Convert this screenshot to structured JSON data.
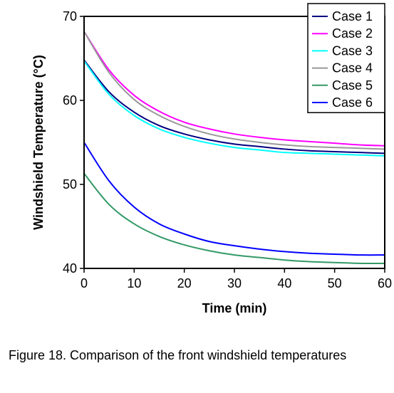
{
  "caption": "Figure 18. Comparison of the front windshield temperatures",
  "chart_data": {
    "type": "line",
    "xlabel": "Time (min)",
    "ylabel": "Windshield Temperature (°C)",
    "xlim": [
      0,
      60
    ],
    "ylim": [
      40,
      70
    ],
    "xticks": [
      0,
      10,
      20,
      30,
      40,
      50,
      60
    ],
    "yticks": [
      40,
      50,
      60,
      70
    ],
    "grid": false,
    "legend_position": "top-right",
    "x": [
      0,
      5,
      10,
      15,
      20,
      25,
      30,
      35,
      40,
      45,
      50,
      55,
      60
    ],
    "series": [
      {
        "name": "Case 1",
        "color": "#000080",
        "values": [
          64.8,
          61.0,
          58.6,
          57.0,
          56.0,
          55.3,
          54.8,
          54.5,
          54.2,
          54.0,
          53.9,
          53.8,
          53.7
        ]
      },
      {
        "name": "Case 2",
        "color": "#ff00ff",
        "values": [
          68.2,
          63.6,
          60.6,
          58.7,
          57.4,
          56.6,
          56.0,
          55.6,
          55.3,
          55.1,
          54.9,
          54.7,
          54.6
        ]
      },
      {
        "name": "Case 3",
        "color": "#00ffff",
        "values": [
          64.7,
          60.7,
          58.2,
          56.6,
          55.6,
          54.9,
          54.4,
          54.1,
          53.8,
          53.7,
          53.6,
          53.5,
          53.4
        ]
      },
      {
        "name": "Case 4",
        "color": "#999999",
        "values": [
          68.2,
          63.3,
          60.1,
          58.2,
          56.9,
          56.0,
          55.4,
          55.0,
          54.7,
          54.5,
          54.4,
          54.3,
          54.2
        ]
      },
      {
        "name": "Case 5",
        "color": "#339966",
        "values": [
          51.3,
          47.6,
          45.3,
          43.8,
          42.8,
          42.1,
          41.6,
          41.3,
          41.0,
          40.8,
          40.7,
          40.6,
          40.6
        ]
      },
      {
        "name": "Case 6",
        "color": "#0000ff",
        "values": [
          55.0,
          50.4,
          47.3,
          45.3,
          44.1,
          43.2,
          42.7,
          42.3,
          42.0,
          41.8,
          41.7,
          41.6,
          41.6
        ]
      }
    ]
  }
}
